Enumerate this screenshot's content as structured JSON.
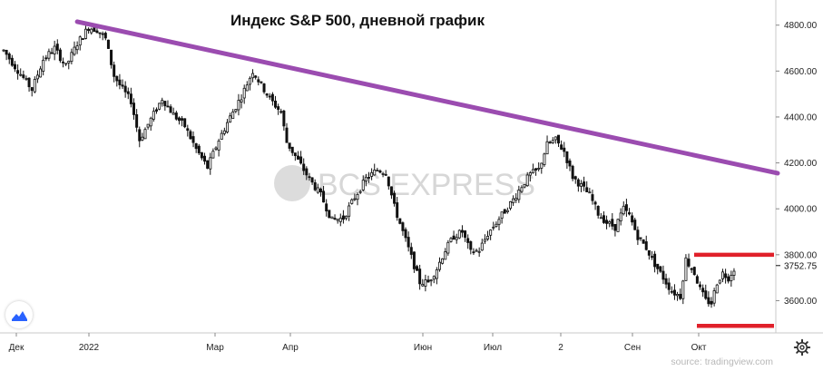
{
  "chart_data": {
    "type": "candlestick",
    "title": "Индекс S&P 500, дневной график",
    "source": "source: tradingview.com",
    "watermark": "BCS EXPRESS",
    "x_tick_labels": [
      "Дек",
      "2022",
      "Мар",
      "Апр",
      "Июн",
      "Июл",
      "2",
      "Сен",
      "Окт"
    ],
    "y_tick_labels": [
      "4800.00",
      "4600.00",
      "4400.00",
      "4200.00",
      "4000.00",
      "3800.00",
      "3600.00"
    ],
    "ylim": [
      3420,
      4870
    ],
    "y_ticks": [
      4800,
      4600,
      4400,
      4200,
      4000,
      3800,
      3600
    ],
    "last_price": 3752.75,
    "last_price_label": "3752.75",
    "colors": {
      "candle": "#111111",
      "trendline": "#9b4cb0",
      "support_resistance": "#e0202a",
      "axis": "#c8c8c8",
      "watermark": "#d7d7d7"
    },
    "price_path": [
      [
        0,
        4690
      ],
      [
        4,
        4620
      ],
      [
        10,
        4520
      ],
      [
        14,
        4650
      ],
      [
        18,
        4700
      ],
      [
        22,
        4620
      ],
      [
        26,
        4720
      ],
      [
        30,
        4790
      ],
      [
        33,
        4780
      ],
      [
        36,
        4740
      ],
      [
        39,
        4580
      ],
      [
        42,
        4520
      ],
      [
        45,
        4470
      ],
      [
        48,
        4300
      ],
      [
        52,
        4390
      ],
      [
        56,
        4480
      ],
      [
        60,
        4410
      ],
      [
        64,
        4360
      ],
      [
        68,
        4260
      ],
      [
        72,
        4180
      ],
      [
        76,
        4300
      ],
      [
        80,
        4400
      ],
      [
        84,
        4490
      ],
      [
        88,
        4600
      ],
      [
        91,
        4540
      ],
      [
        94,
        4480
      ],
      [
        98,
        4420
      ],
      [
        100,
        4290
      ],
      [
        104,
        4210
      ],
      [
        108,
        4130
      ],
      [
        112,
        4060
      ],
      [
        116,
        3950
      ],
      [
        120,
        3960
      ],
      [
        124,
        4050
      ],
      [
        128,
        4130
      ],
      [
        132,
        4170
      ],
      [
        135,
        4160
      ],
      [
        138,
        4010
      ],
      [
        141,
        3900
      ],
      [
        144,
        3790
      ],
      [
        147,
        3680
      ],
      [
        150,
        3680
      ],
      [
        153,
        3740
      ],
      [
        156,
        3820
      ],
      [
        159,
        3880
      ],
      [
        162,
        3900
      ],
      [
        165,
        3810
      ],
      [
        168,
        3820
      ],
      [
        171,
        3890
      ],
      [
        174,
        3940
      ],
      [
        177,
        3990
      ],
      [
        180,
        4040
      ],
      [
        183,
        4100
      ],
      [
        186,
        4150
      ],
      [
        189,
        4170
      ],
      [
        192,
        4280
      ],
      [
        195,
        4300
      ],
      [
        198,
        4250
      ],
      [
        201,
        4140
      ],
      [
        204,
        4100
      ],
      [
        207,
        4060
      ],
      [
        210,
        3980
      ],
      [
        213,
        3940
      ],
      [
        216,
        3920
      ],
      [
        219,
        4000
      ],
      [
        221,
        3970
      ],
      [
        224,
        3880
      ],
      [
        227,
        3830
      ],
      [
        230,
        3760
      ],
      [
        233,
        3700
      ],
      [
        236,
        3640
      ],
      [
        239,
        3620
      ],
      [
        241,
        3780
      ],
      [
        244,
        3720
      ],
      [
        246,
        3650
      ],
      [
        248,
        3600
      ],
      [
        250,
        3590
      ],
      [
        252,
        3680
      ],
      [
        254,
        3720
      ],
      [
        256,
        3700
      ],
      [
        258,
        3740
      ]
    ],
    "trendline": [
      [
        26,
        4815
      ],
      [
        258,
        4155
      ]
    ],
    "resistance_line": {
      "value": 3800,
      "from": 229,
      "to": 258
    },
    "support_line": {
      "value": 3490,
      "from": 230,
      "to": 258
    }
  },
  "ui": {
    "settings_icon": "gear-icon",
    "logo_icon": "tradingview-logo-icon"
  }
}
